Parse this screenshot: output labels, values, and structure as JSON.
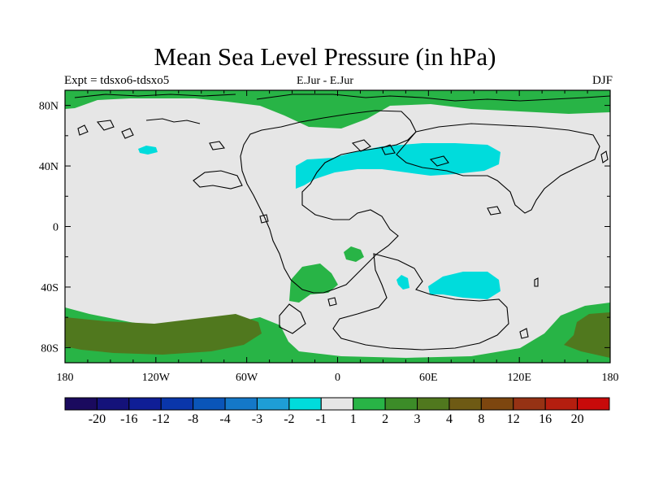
{
  "title": "Mean Sea Level Pressure (in hPa)",
  "subtitle_left": "Expt = tdsxo6-tdsxo5",
  "subtitle_center": "E.Jur - E.Jur",
  "subtitle_right": "DJF",
  "map": {
    "projection": "cylindrical-equidistant",
    "lon_range": [
      -180,
      180
    ],
    "lat_range": [
      -90,
      90
    ],
    "lat_ticks": [
      {
        "value": 80,
        "label": "80N"
      },
      {
        "value": 40,
        "label": "40N"
      },
      {
        "value": 0,
        "label": "0"
      },
      {
        "value": -40,
        "label": "40S"
      },
      {
        "value": -80,
        "label": "80S"
      }
    ],
    "lon_ticks": [
      {
        "value": -180,
        "label": "180"
      },
      {
        "value": -120,
        "label": "120W"
      },
      {
        "value": -60,
        "label": "60W"
      },
      {
        "value": 0,
        "label": "0"
      },
      {
        "value": 60,
        "label": "60E"
      },
      {
        "value": 120,
        "label": "120E"
      },
      {
        "value": 180,
        "label": "180"
      }
    ],
    "background_fill": "#e6e6e6"
  },
  "colorbar": {
    "colors": [
      "#1a0a5e",
      "#14127a",
      "#0f1e96",
      "#0a36aa",
      "#0a55b8",
      "#1478c8",
      "#1e9ed6",
      "#00dcdc",
      "#e6e6e6",
      "#28b446",
      "#3c8c28",
      "#50781e",
      "#6e5a14",
      "#7d460f",
      "#963214",
      "#b41e0f",
      "#c80a0a"
    ],
    "labels": [
      "-20",
      "-16",
      "-12",
      "-8",
      "-4",
      "-3",
      "-2",
      "-1",
      "1",
      "2",
      "3",
      "4",
      "8",
      "12",
      "16",
      "20"
    ]
  }
}
